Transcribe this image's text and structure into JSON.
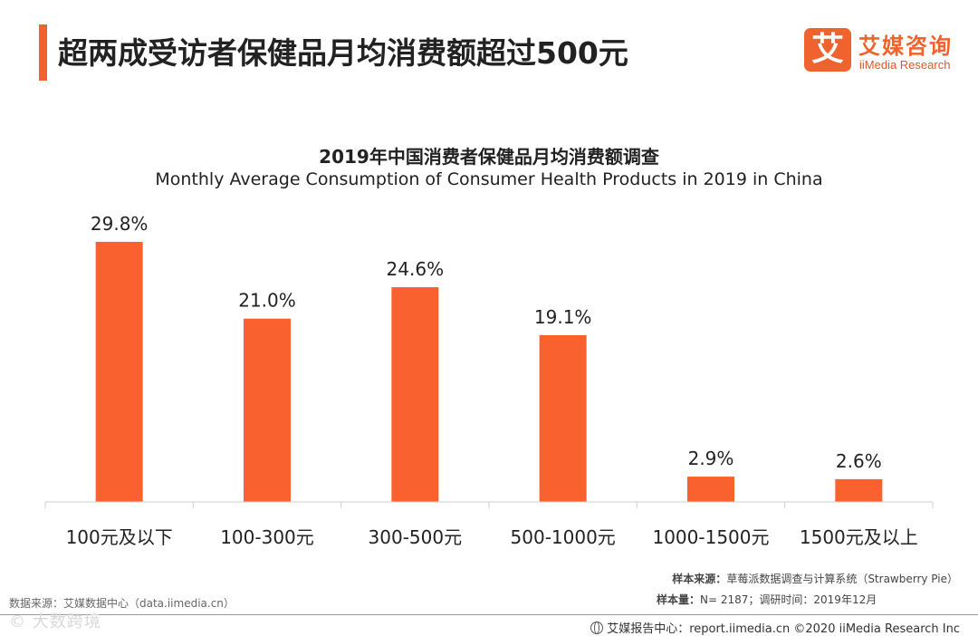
{
  "header": {
    "headline": "超两成受访者保健品月均消费额超过500元",
    "accent_color": "#f0622e"
  },
  "logo": {
    "mark": "艾",
    "name": "艾媒咨询",
    "sub": "iiMedia Research",
    "color": "#f0622e"
  },
  "chart_data": {
    "type": "bar",
    "title": "2019年中国消费者保健品月均消费额调查",
    "subtitle": "Monthly Average Consumption  of Consumer Health Products in 2019 in China",
    "categories": [
      "100元及以下",
      "100-300元",
      "300-500元",
      "500-1000元",
      "1000-1500元",
      "1500元及以上"
    ],
    "values": [
      29.8,
      21.0,
      24.6,
      19.1,
      2.9,
      2.6
    ],
    "value_labels": [
      "29.8%",
      "21.0%",
      "24.6%",
      "19.1%",
      "2.9%",
      "2.6%"
    ],
    "unit": "%",
    "xlabel": "",
    "ylabel": "",
    "ylim": [
      0,
      30
    ],
    "grid": false,
    "legend": "none",
    "bar_color": "#f9622f"
  },
  "footer": {
    "source_left": "数据来源：艾媒数据中心（data.iimedia.cn）",
    "sample_source_label": "样本来源：",
    "sample_source": "草莓派数据调查与计算系统（Strawberry  Pie）",
    "sample_size_label": "样本量：",
    "sample_size": "N= 2187；调研时间：2019年12月",
    "report_center": "艾媒报告中心：report.iimedia.cn ©2020  iiMedia Research  Inc",
    "watermark": "© 大数跨境"
  }
}
